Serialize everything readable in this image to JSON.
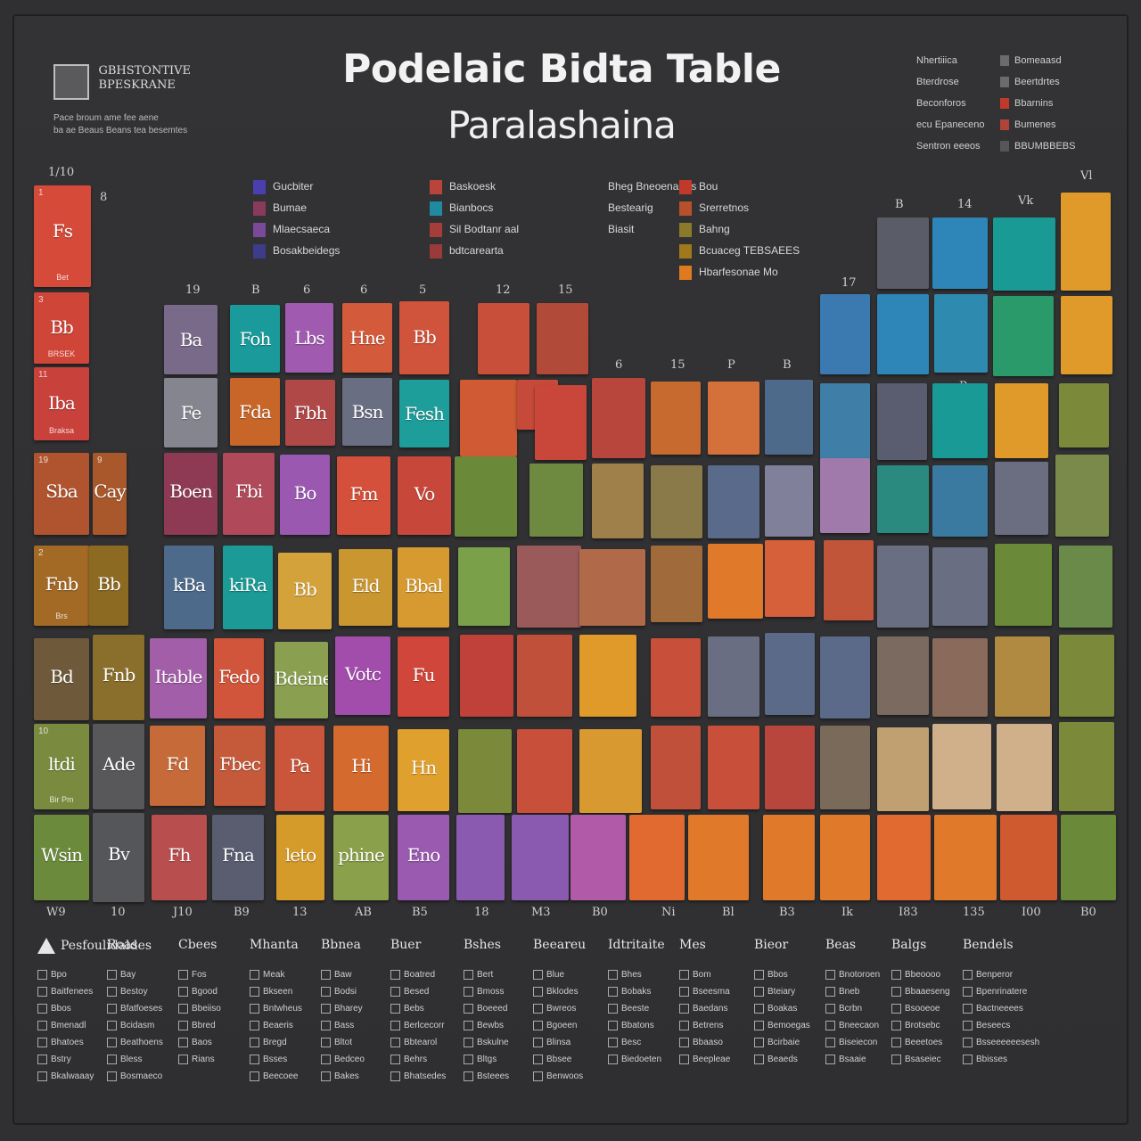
{
  "poster": {
    "title": "Podelaic Bidta Table",
    "subtitle": "Paralashaina"
  },
  "logo": {
    "line1": "GBHSTONTIVE",
    "line2": "BPESKRANE",
    "lines": [
      "Pace broum ame fee aene",
      "ba ae Beaus Beans tea besemtes"
    ]
  },
  "legend_top_right": {
    "left_items": [
      "Nhertiiica",
      "Bterdrose",
      "Beconforos",
      "ecu Epaneceno",
      "Sentron eeeos"
    ],
    "right_items": [
      {
        "label": "Bomeaasd",
        "color": "#6b6b6e"
      },
      {
        "label": "Beertdrtes",
        "color": "#6b6b6e"
      },
      {
        "label": "Bbarnins",
        "color": "#c0392b"
      },
      {
        "label": "Bumenes",
        "color": "#b0443a"
      },
      {
        "label": "BBUMBBEBS",
        "color": "#55555a"
      }
    ]
  },
  "legend_groups": [
    {
      "items": [
        {
          "label": "Gucbiter",
          "color": "#4b3fb0"
        },
        {
          "label": "Bumae",
          "color": "#8a3a5a"
        },
        {
          "label": "Mlaecsaeca",
          "color": "#7a4a9a"
        },
        {
          "label": "Bosakbeidegs",
          "color": "#3c3c8a"
        }
      ]
    },
    {
      "items": [
        {
          "label": "Baskoesk",
          "color": "#b8443a"
        },
        {
          "label": "Bianbocs",
          "color": "#1f8aa0"
        },
        {
          "label": "Sil Bodtanr aal",
          "color": "#a53d3a"
        },
        {
          "label": "bdtcarearta",
          "color": "#9a3a3a"
        }
      ]
    },
    {
      "items": [
        {
          "label": "Bheg Bneoenartas",
          "color": ""
        },
        {
          "label": "Bestearig",
          "color": ""
        },
        {
          "label": "Biasit",
          "color": ""
        }
      ]
    },
    {
      "items": [
        {
          "label": "Bou",
          "color": "#c0392b"
        },
        {
          "label": "Srerretnos",
          "color": "#b8502c"
        },
        {
          "label": "Bahng",
          "color": "#8a7a2a"
        },
        {
          "label": "Bcuaceg TEBSAEES",
          "color": "#a07a1a"
        },
        {
          "label": "Hbarfesonae Mo",
          "color": "#e07a20"
        }
      ]
    }
  ],
  "group_numbers": [
    "1/10",
    "8",
    "19",
    "B",
    "6",
    "6",
    "5",
    "12",
    "15",
    "6",
    "15",
    "P",
    "B",
    "17",
    "B",
    "14",
    "Vk",
    "Vl",
    "D",
    "B"
  ],
  "tiles": [
    {
      "num": "1",
      "sym": "Fs",
      "small": "Bet",
      "color": "#d64a3a"
    },
    {
      "num": "3",
      "sym": "Bb",
      "small": "BRSEK",
      "color": "#cf4538"
    },
    {
      "num": "11",
      "sym": "Iba",
      "small": "Braksa",
      "color": "#c8413b"
    },
    {
      "num": "19",
      "sym": "Sba",
      "small": "",
      "color": "#b0542f"
    },
    {
      "num": "9",
      "sym": "Cay",
      "small": "",
      "color": "#a8582a"
    },
    {
      "num": "2",
      "sym": "Fnb",
      "small": "Brs",
      "color": "#a36a26"
    },
    {
      "num": "",
      "sym": "Bb",
      "small": "",
      "color": "#8c6a22"
    },
    {
      "num": "",
      "sym": "Fnb",
      "small": "",
      "color": "#8a6e2c"
    },
    {
      "num": "",
      "sym": "Bd",
      "small": "",
      "color": "#6e5a3a"
    },
    {
      "num": "",
      "sym": "Wsin",
      "small": "",
      "color": "#6b8a3c"
    },
    {
      "num": "10",
      "sym": "ltdi",
      "small": "Bir Pm",
      "color": "#7a8a3e"
    },
    {
      "num": "",
      "sym": "Ade",
      "small": "",
      "color": "#58585a"
    },
    {
      "num": "",
      "sym": "Bv",
      "small": "",
      "color": "#55565a"
    },
    {
      "num": "",
      "sym": "Ba",
      "small": "",
      "color": "#7a6a8a"
    },
    {
      "num": "",
      "sym": "Fe",
      "small": "",
      "color": "#858590"
    },
    {
      "num": "",
      "sym": "Boen",
      "small": "",
      "color": "#8e3a54"
    },
    {
      "num": "",
      "sym": "Fbi",
      "small": "",
      "color": "#b04a5a"
    },
    {
      "num": "",
      "sym": "kBa",
      "small": "",
      "color": "#4e6a8a"
    },
    {
      "num": "",
      "sym": "kiRa",
      "small": "",
      "color": "#1b9a96"
    },
    {
      "num": "",
      "sym": "Itable",
      "small": "",
      "color": "#a25ea8"
    },
    {
      "num": "",
      "sym": "Fedo",
      "small": "",
      "color": "#d0553a"
    },
    {
      "num": "",
      "sym": "Fd",
      "small": "",
      "color": "#c66a3a"
    },
    {
      "num": "",
      "sym": "Fbec",
      "small": "",
      "color": "#c45a3a"
    },
    {
      "num": "",
      "sym": "Fh",
      "small": "",
      "color": "#b84e4e"
    },
    {
      "num": "",
      "sym": "Fna",
      "small": "",
      "color": "#5a5d70"
    },
    {
      "num": "",
      "sym": "Foh",
      "small": "",
      "color": "#1a9a9a"
    },
    {
      "num": "",
      "sym": "Lbs",
      "small": "",
      "color": "#a05ab0"
    },
    {
      "num": "",
      "sym": "Hne",
      "small": "",
      "color": "#d45a3c"
    },
    {
      "num": "",
      "sym": "Bb",
      "small": "",
      "color": "#d0543c"
    },
    {
      "num": "",
      "sym": "Fda",
      "small": "",
      "color": "#c8662a"
    },
    {
      "num": "",
      "sym": "Fbh",
      "small": "",
      "color": "#b04848"
    },
    {
      "num": "",
      "sym": "Bsn",
      "small": "",
      "color": "#6a6e82"
    },
    {
      "num": "",
      "sym": "Fesh",
      "small": "",
      "color": "#1e9e9a"
    },
    {
      "num": "",
      "sym": "Bo",
      "small": "",
      "color": "#9a58b0"
    },
    {
      "num": "",
      "sym": "Fm",
      "small": "",
      "color": "#d4503a"
    },
    {
      "num": "",
      "sym": "Vo",
      "small": "",
      "color": "#c7473a"
    },
    {
      "num": "",
      "sym": "Bb",
      "small": "",
      "color": "#d3a23a"
    },
    {
      "num": "",
      "sym": "Eld",
      "small": "",
      "color": "#c99630"
    },
    {
      "num": "",
      "sym": "Bbal",
      "small": "",
      "color": "#d69a30"
    },
    {
      "num": "",
      "sym": "Bdeine",
      "small": "",
      "color": "#8aa050"
    },
    {
      "num": "",
      "sym": "Votc",
      "small": "",
      "color": "#a24cac"
    },
    {
      "num": "",
      "sym": "Fu",
      "small": "",
      "color": "#d0463a"
    },
    {
      "num": "",
      "sym": "Pa",
      "small": "",
      "color": "#c9553a"
    },
    {
      "num": "",
      "sym": "Hi",
      "small": "",
      "color": "#d46a2e"
    },
    {
      "num": "",
      "sym": "Hn",
      "small": "",
      "color": "#e0a02e"
    },
    {
      "num": "",
      "sym": "leto",
      "small": "",
      "color": "#d49a2a"
    },
    {
      "num": "",
      "sym": "phine",
      "small": "",
      "color": "#8aa04a"
    },
    {
      "num": "",
      "sym": "Eno",
      "small": "",
      "color": "#9a5ab0"
    }
  ],
  "axis_labels": [
    "W9",
    "10",
    "J10",
    "B9",
    "13",
    "AB",
    "B5",
    "18",
    "M3",
    "B0",
    "Ni",
    "Bl",
    "B3",
    "Ik",
    "I83",
    "135",
    "I00",
    "B0"
  ],
  "bottom_legend": {
    "columns": [
      {
        "head": "Pesfoulidaldes",
        "rows": [
          "Bpo",
          "Baitfenees",
          "Bbos",
          "Bmenadl",
          "Bhatoes",
          "Bstry",
          "Bkalwaaay"
        ]
      },
      {
        "head": "Roas",
        "rows": [
          "Bay",
          "Bestoy",
          "Bfatfoeses",
          "Bcidasm",
          "Beathoens",
          "Bless",
          "Bosmaeco"
        ]
      },
      {
        "head": "Cbees",
        "rows": [
          "Fos",
          "Bgood",
          "Bbeiiso",
          "Bbred",
          "Baos",
          "Rians"
        ]
      },
      {
        "head": "Mhanta",
        "rows": [
          "Meak",
          "Bkseen",
          "Bntwheus",
          "Beaeris",
          "Bregd",
          "Bsses",
          "Beecoee"
        ]
      },
      {
        "head": "Bbnea",
        "rows": [
          "Baw",
          "Bodsi",
          "Bharey",
          "Bass",
          "Bltot",
          "Bedceo",
          "Bakes"
        ]
      },
      {
        "head": "Buer",
        "rows": [
          "Boatred",
          "Besed",
          "Bebs",
          "Berlcecorr",
          "Bbtearol",
          "Behrs",
          "Bhatsedes"
        ]
      },
      {
        "head": "Bshes",
        "rows": [
          "Bert",
          "Bmoss",
          "Boeeed",
          "Bewbs",
          "Bskulne",
          "Bltgs",
          "Bsteees"
        ]
      },
      {
        "head": "Beeareu",
        "rows": [
          "Blue",
          "Bklodes",
          "Bwreos",
          "Bgoeen",
          "Blinsa",
          "Bbsee",
          "Benwoos"
        ]
      },
      {
        "head": "Idtritaite",
        "rows": [
          "Bhes",
          "Bobaks",
          "Beeste",
          "Bbatons",
          "Besc",
          "Biedoeten"
        ]
      },
      {
        "head": "Mes",
        "rows": [
          "Bom",
          "Bseesma",
          "Baedans",
          "Betrens",
          "Bbaaso",
          "Beepleae"
        ]
      },
      {
        "head": "Bieor",
        "rows": [
          "Bbos",
          "Bteiary",
          "Boakas",
          "Bemoegas",
          "Bcirbaie",
          "Beaeds"
        ]
      },
      {
        "head": "Beas",
        "rows": [
          "Bnotoroen",
          "Bneb",
          "Bcrbn",
          "Bneecaon",
          "Biseiecon",
          "Bsaaie"
        ]
      },
      {
        "head": "Balgs",
        "rows": [
          "Bbeoooo",
          "Bbaaeseng",
          "Bsooeoe",
          "Brotsebc",
          "Beeetoes",
          "Bsaseiec"
        ]
      },
      {
        "head": "Bendels",
        "rows": [
          "Benperor",
          "Bpenrinatere",
          "Bactneeees",
          "Beseecs",
          "Bsseeeeeesesh",
          "Bbisses"
        ]
      }
    ]
  }
}
